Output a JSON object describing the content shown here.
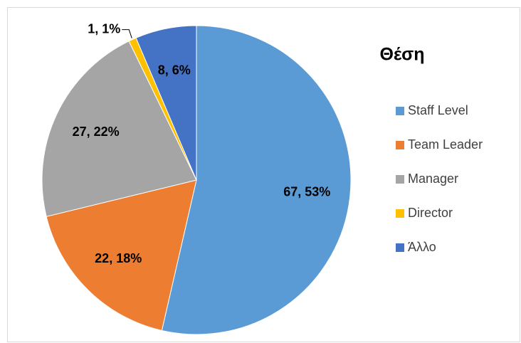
{
  "chart_data": {
    "type": "pie",
    "title": "Θέση",
    "categories": [
      "Staff Level",
      "Team Leader",
      "Manager",
      "Director",
      "Άλλο"
    ],
    "values": [
      67,
      22,
      27,
      1,
      8
    ],
    "value_labels": [
      "67, 53%",
      "22, 18%",
      "27, 22%",
      "1, 1%",
      "8, 6%"
    ],
    "colors": [
      "#5b9bd5",
      "#ed7d31",
      "#a5a5a5",
      "#ffc000",
      "#4472c4"
    ],
    "legend": "right"
  }
}
